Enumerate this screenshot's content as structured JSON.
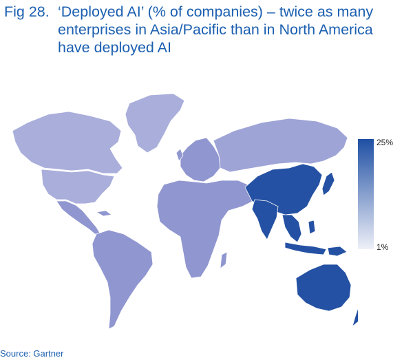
{
  "figure": {
    "label": "Fig 28.",
    "title": "‘Deployed AI’ (% of companies) – twice as many enterprises in Asia/Pacific than in North America have deployed AI"
  },
  "legend": {
    "max_label": "25%",
    "min_label": "1%",
    "max_color": "#1f4fa3",
    "min_color": "#eef0f8"
  },
  "regions": [
    {
      "name": "north-america",
      "shade": "light"
    },
    {
      "name": "greenland",
      "shade": "light"
    },
    {
      "name": "latin-america",
      "shade": "medium"
    },
    {
      "name": "europe",
      "shade": "medium"
    },
    {
      "name": "russia",
      "shade": "medium-light"
    },
    {
      "name": "middle-east-africa",
      "shade": "medium"
    },
    {
      "name": "asia-pacific",
      "shade": "dark"
    }
  ],
  "colors": {
    "light": "#a9aedb",
    "medium-light": "#9ea4d6",
    "medium": "#9096cf",
    "dark": "#2451a3",
    "border": "#ffffff",
    "title": "#1b5fb0"
  },
  "source": "Source: Gartner"
}
